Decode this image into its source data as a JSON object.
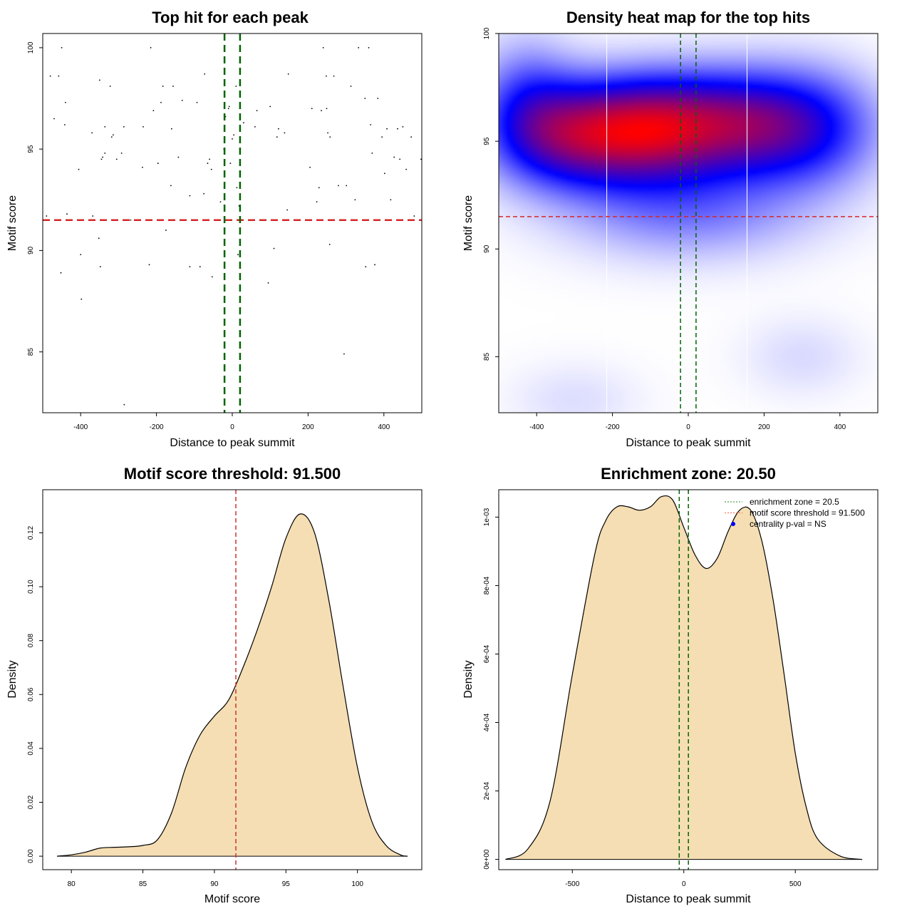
{
  "chart_data": [
    {
      "id": "scatter",
      "type": "scatter",
      "title": "Top hit for each peak",
      "xlabel": "Distance to peak summit",
      "ylabel": "Motif score",
      "xlim": [
        -500,
        500
      ],
      "ylim": [
        82,
        100.7
      ],
      "xticks": [
        -400,
        -200,
        0,
        200,
        400
      ],
      "yticks": [
        85,
        90,
        95,
        100
      ],
      "hline": {
        "y": 91.5,
        "color": "#d62728",
        "style": "dashed"
      },
      "vlines": [
        {
          "x": -20.5,
          "color": "#006400"
        },
        {
          "x": 20.5,
          "color": "#006400"
        }
      ],
      "points": [
        [
          -490,
          91.7
        ],
        [
          -480,
          98.6
        ],
        [
          -470,
          96.5
        ],
        [
          -458,
          98.6
        ],
        [
          -452,
          88.9
        ],
        [
          -450,
          100
        ],
        [
          -440,
          97.3
        ],
        [
          -442,
          96.2
        ],
        [
          -436,
          91.8
        ],
        [
          -405,
          94.0
        ],
        [
          -400,
          89.8
        ],
        [
          -398,
          87.6
        ],
        [
          -370,
          95.8
        ],
        [
          -368,
          91.7
        ],
        [
          -352,
          90.6
        ],
        [
          -350,
          98.4
        ],
        [
          -348,
          89.2
        ],
        [
          -345,
          94.5
        ],
        [
          -342,
          94.6
        ],
        [
          -336,
          94.8
        ],
        [
          -336,
          96.1
        ],
        [
          -322,
          98.1
        ],
        [
          -318,
          95.6
        ],
        [
          -314,
          95.7
        ],
        [
          -305,
          94.5
        ],
        [
          -292,
          94.8
        ],
        [
          -286,
          96.1
        ],
        [
          -285,
          82.4
        ],
        [
          -268,
          91.5
        ],
        [
          -237,
          94.1
        ],
        [
          -235,
          96.1
        ],
        [
          -219,
          89.3
        ],
        [
          -215,
          100
        ],
        [
          -208,
          96.9
        ],
        [
          -196,
          94.3
        ],
        [
          -188,
          97.3
        ],
        [
          -183,
          98.1
        ],
        [
          -175,
          91.0
        ],
        [
          -162,
          93.2
        ],
        [
          -160,
          96.0
        ],
        [
          -156,
          98.1
        ],
        [
          -142,
          94.6
        ],
        [
          -132,
          97.4
        ],
        [
          -112,
          92.7
        ],
        [
          -112,
          89.2
        ],
        [
          -93,
          97.3
        ],
        [
          -85,
          89.2
        ],
        [
          -75,
          92.8
        ],
        [
          -73,
          98.7
        ],
        [
          -65,
          94.3
        ],
        [
          -60,
          94.5
        ],
        [
          -55,
          94.0
        ],
        [
          -53,
          88.7
        ],
        [
          -31,
          92.4
        ],
        [
          -22,
          95.0
        ],
        [
          -18,
          96.6
        ],
        [
          -10,
          97.0
        ],
        [
          -8,
          97.1
        ],
        [
          -5,
          94.3
        ],
        [
          0,
          95.5
        ],
        [
          4,
          95.7
        ],
        [
          10,
          98.1
        ],
        [
          12,
          93.1
        ],
        [
          15,
          89.8
        ],
        [
          18,
          92.2
        ],
        [
          30,
          96.3
        ],
        [
          60,
          96.1
        ],
        [
          65,
          96.9
        ],
        [
          95,
          88.4
        ],
        [
          100,
          97.1
        ],
        [
          110,
          90.1
        ],
        [
          118,
          95.6
        ],
        [
          122,
          96.0
        ],
        [
          138,
          95.8
        ],
        [
          145,
          92.0
        ],
        [
          148,
          98.7
        ],
        [
          205,
          94.1
        ],
        [
          210,
          97.0
        ],
        [
          223,
          92.4
        ],
        [
          229,
          93.1
        ],
        [
          235,
          96.9
        ],
        [
          240,
          100
        ],
        [
          248,
          98.6
        ],
        [
          249,
          97.0
        ],
        [
          252,
          95.8
        ],
        [
          257,
          90.3
        ],
        [
          258,
          95.6
        ],
        [
          268,
          98.6
        ],
        [
          280,
          93.2
        ],
        [
          295,
          84.9
        ],
        [
          301,
          93.2
        ],
        [
          313,
          98.1
        ],
        [
          324,
          92.5
        ],
        [
          333,
          100
        ],
        [
          350,
          97.5
        ],
        [
          352,
          89.2
        ],
        [
          360,
          100
        ],
        [
          365,
          96.2
        ],
        [
          369,
          94.8
        ],
        [
          376,
          89.3
        ],
        [
          384,
          97.5
        ],
        [
          395,
          95.6
        ],
        [
          402,
          93.8
        ],
        [
          408,
          96.0
        ],
        [
          418,
          92.5
        ],
        [
          427,
          94.6
        ],
        [
          436,
          96.0
        ],
        [
          442,
          94.5
        ],
        [
          450,
          96.1
        ],
        [
          459,
          94.0
        ],
        [
          472,
          95.6
        ],
        [
          480,
          91.7
        ],
        [
          498,
          94.5
        ]
      ]
    },
    {
      "id": "heatmap",
      "type": "heatmap",
      "title": "Density heat map for the top hits",
      "xlabel": "Distance to peak summit",
      "ylabel": "Motif score",
      "xlim": [
        -500,
        500
      ],
      "ylim": [
        82.4,
        100
      ],
      "xticks": [
        -400,
        -200,
        0,
        200,
        400
      ],
      "yticks": [
        85,
        90,
        95,
        100
      ],
      "colors": [
        "#ffffff",
        "#0000ff",
        "#ff0000"
      ],
      "hline": {
        "y": 91.5,
        "color": "#d62728"
      },
      "vlines": [
        {
          "x": -20.5,
          "color": "#006400"
        },
        {
          "x": 20.5,
          "color": "#006400"
        }
      ],
      "white_lines_x": [
        -215,
        155
      ],
      "kernels": [
        {
          "x": -300,
          "y": 95.3,
          "w": 1.0,
          "sx": 140,
          "sy": 1.7
        },
        {
          "x": -90,
          "y": 95.6,
          "w": 0.95,
          "sx": 130,
          "sy": 1.7
        },
        {
          "x": 130,
          "y": 95.8,
          "w": 0.85,
          "sx": 140,
          "sy": 1.7
        },
        {
          "x": 330,
          "y": 95.6,
          "w": 0.55,
          "sx": 130,
          "sy": 1.9
        },
        {
          "x": -430,
          "y": 97.0,
          "w": 0.35,
          "sx": 90,
          "sy": 2.0
        },
        {
          "x": 0,
          "y": 91.8,
          "w": 0.35,
          "sx": 220,
          "sy": 1.6
        },
        {
          "x": 300,
          "y": 85.0,
          "w": 0.1,
          "sx": 110,
          "sy": 1.3
        },
        {
          "x": -300,
          "y": 83.0,
          "w": 0.09,
          "sx": 120,
          "sy": 1.2
        }
      ]
    },
    {
      "id": "density-score",
      "type": "area",
      "title": "Motif score threshold: 91.500",
      "xlabel": "Motif score",
      "ylabel": "Density",
      "xlim": [
        78,
        104.5
      ],
      "ylim": [
        -0.005,
        0.136
      ],
      "xticks": [
        80,
        85,
        90,
        95,
        100
      ],
      "yticks": [
        0.0,
        0.02,
        0.04,
        0.06,
        0.08,
        0.1,
        0.12
      ],
      "ytick_labels": [
        "0.00",
        "0.02",
        "0.04",
        "0.06",
        "0.08",
        "0.10",
        "0.12"
      ],
      "fill": "#f5deb3",
      "vline": {
        "x": 91.5,
        "color": "#cd3333"
      },
      "x": [
        79,
        80,
        81,
        82,
        83,
        84,
        85,
        86,
        87,
        88,
        89,
        90,
        91,
        92,
        93,
        94,
        95,
        96,
        97,
        98,
        99,
        100,
        101,
        102,
        103,
        103.5
      ],
      "y": [
        0.0,
        0.0005,
        0.0015,
        0.003,
        0.0033,
        0.0035,
        0.004,
        0.006,
        0.016,
        0.033,
        0.045,
        0.052,
        0.058,
        0.07,
        0.084,
        0.1,
        0.118,
        0.127,
        0.12,
        0.095,
        0.063,
        0.033,
        0.013,
        0.004,
        0.0005,
        0.0
      ]
    },
    {
      "id": "density-distance",
      "type": "area",
      "title": "Enrichment zone: 20.50",
      "xlabel": "Distance to peak summit",
      "ylabel": "Density",
      "xlim": [
        -830,
        870
      ],
      "ylim": [
        -3e-05,
        0.00108
      ],
      "xticks": [
        -500,
        0,
        500
      ],
      "yticks": [
        0,
        0.0002,
        0.0004,
        0.0006,
        0.0008,
        0.001
      ],
      "ytick_labels": [
        "0e+00",
        "2e-04",
        "4e-04",
        "6e-04",
        "8e-04",
        "1e-03"
      ],
      "fill": "#f5deb3",
      "vlines": [
        {
          "x": -20.5,
          "color": "#006400"
        },
        {
          "x": 20.5,
          "color": "#006400"
        }
      ],
      "x": [
        -800,
        -700,
        -600,
        -500,
        -400,
        -350,
        -300,
        -250,
        -200,
        -150,
        -100,
        -50,
        0,
        50,
        100,
        150,
        200,
        250,
        300,
        350,
        400,
        450,
        500,
        550,
        600,
        700,
        800
      ],
      "y": [
        0.0,
        3e-05,
        0.00017,
        0.00054,
        0.00089,
        0.00099,
        0.00103,
        0.00103,
        0.00102,
        0.00103,
        0.00106,
        0.00105,
        0.00097,
        0.00089,
        0.00085,
        0.00088,
        0.00096,
        0.00102,
        0.00102,
        0.00093,
        0.00076,
        0.00054,
        0.00031,
        0.00015,
        6e-05,
        1e-05,
        0.0
      ],
      "legend": [
        {
          "label": "enrichment zone = 20.5",
          "color": "#228b22",
          "kind": "line"
        },
        {
          "label": "motif score threshold = 91.500",
          "color": "#ff6347",
          "kind": "line"
        },
        {
          "label": "centrality p-val = NS",
          "color": "#0000ff",
          "kind": "point"
        }
      ]
    }
  ]
}
